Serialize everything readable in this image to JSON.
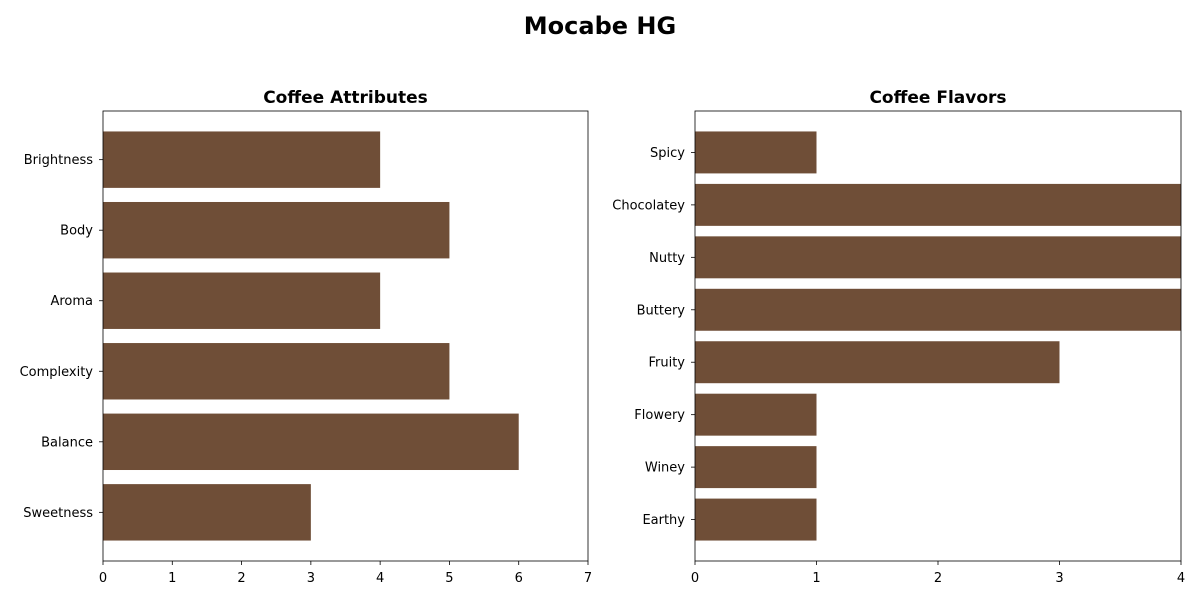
{
  "suptitle": "Mocabe HG",
  "bar_color": "#6F4E37",
  "chart_data": [
    {
      "type": "bar",
      "orientation": "horizontal",
      "title": "Coffee Attributes",
      "categories": [
        "Brightness",
        "Body",
        "Aroma",
        "Complexity",
        "Balance",
        "Sweetness"
      ],
      "values": [
        4,
        5,
        4,
        5,
        6,
        3
      ],
      "xlim": [
        0,
        7
      ],
      "xticks": [
        0,
        1,
        2,
        3,
        4,
        5,
        6,
        7
      ],
      "xlabel": "",
      "ylabel": "",
      "grid": false
    },
    {
      "type": "bar",
      "orientation": "horizontal",
      "title": "Coffee Flavors",
      "categories": [
        "Spicy",
        "Chocolatey",
        "Nutty",
        "Buttery",
        "Fruity",
        "Flowery",
        "Winey",
        "Earthy"
      ],
      "values": [
        1,
        4,
        4,
        4,
        3,
        1,
        1,
        1
      ],
      "xlim": [
        0,
        4
      ],
      "xticks": [
        0,
        1,
        2,
        3,
        4
      ],
      "xlabel": "",
      "ylabel": "",
      "grid": false
    }
  ]
}
